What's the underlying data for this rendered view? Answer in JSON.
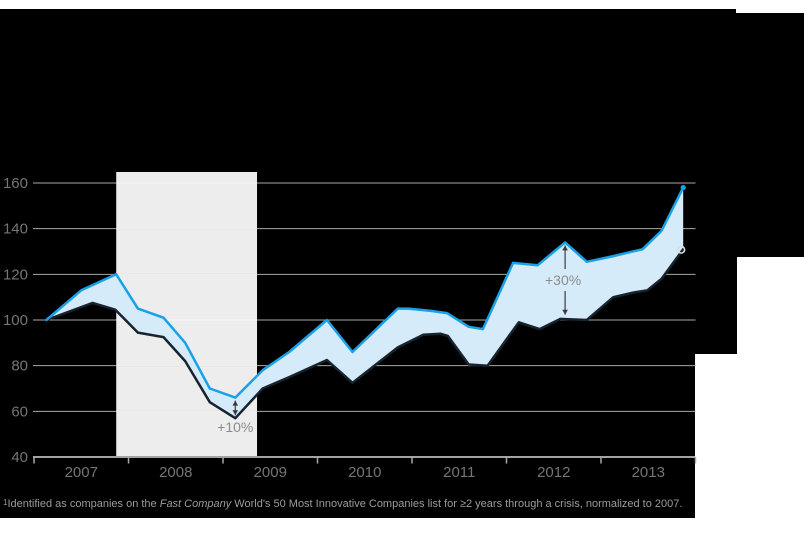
{
  "figure": {
    "background_color": "#000000",
    "page_color": "#ffffff"
  },
  "footnote": {
    "superscript": "1",
    "text_pre": "Identified as companies on the ",
    "italic_part": "Fast Company",
    "text_post": " World's 50 Most Innovative Companies list for ≥2 years through a crisis, normalized to 2007."
  },
  "chart_data": {
    "type": "line",
    "title": "",
    "xlabel": "",
    "ylabel": "",
    "ylim": [
      40,
      160
    ],
    "xlim_years": [
      2007,
      2014
    ],
    "grid": true,
    "yticks": [
      {
        "value": 160,
        "label": "160"
      },
      {
        "value": 140,
        "label": "140"
      },
      {
        "value": 120,
        "label": "120"
      },
      {
        "value": 100,
        "label": "100"
      },
      {
        "value": 80,
        "label": "80"
      },
      {
        "value": 60,
        "label": "60"
      },
      {
        "value": 40,
        "label": "40"
      }
    ],
    "xticks": [
      {
        "year": 2007,
        "label": "2007"
      },
      {
        "year": 2008,
        "label": "2008"
      },
      {
        "year": 2009,
        "label": "2009"
      },
      {
        "year": 2010,
        "label": "2010"
      },
      {
        "year": 2011,
        "label": "2011"
      },
      {
        "year": 2012,
        "label": "2012"
      },
      {
        "year": 2013,
        "label": "2013"
      }
    ],
    "recession_band": {
      "from_year": 2007.87,
      "to_year": 2009.36,
      "color": "#ededed"
    },
    "area_fill_color": "#d6ebf9",
    "series": [
      {
        "name": "innovative-companies",
        "color": "#18a1e7",
        "end_marker": "dot",
        "points": [
          [
            2007.13,
            100
          ],
          [
            2007.5,
            113
          ],
          [
            2007.87,
            120
          ],
          [
            2008.1,
            105
          ],
          [
            2008.37,
            101
          ],
          [
            2008.6,
            90
          ],
          [
            2008.86,
            70
          ],
          [
            2009.13,
            66
          ],
          [
            2009.42,
            78
          ],
          [
            2009.7,
            86
          ],
          [
            2010.1,
            100
          ],
          [
            2010.37,
            86
          ],
          [
            2010.85,
            105
          ],
          [
            2010.96,
            105
          ],
          [
            2011.2,
            104
          ],
          [
            2011.37,
            103
          ],
          [
            2011.6,
            97
          ],
          [
            2011.75,
            96
          ],
          [
            2012.07,
            125
          ],
          [
            2012.33,
            124
          ],
          [
            2012.62,
            134
          ],
          [
            2012.85,
            125.5
          ],
          [
            2013.13,
            128
          ],
          [
            2013.44,
            131
          ],
          [
            2013.64,
            139
          ],
          [
            2013.87,
            158
          ]
        ]
      },
      {
        "name": "sp-500",
        "color": "#17232e",
        "end_marker": "open-circle",
        "points": [
          [
            2007.13,
            100
          ],
          [
            2007.62,
            107.5
          ],
          [
            2007.86,
            104.5
          ],
          [
            2008.1,
            94.5
          ],
          [
            2008.37,
            92.5
          ],
          [
            2008.6,
            82
          ],
          [
            2008.86,
            64
          ],
          [
            2009.13,
            57
          ],
          [
            2009.42,
            70
          ],
          [
            2009.7,
            75
          ],
          [
            2010.1,
            82.5
          ],
          [
            2010.37,
            72.5
          ],
          [
            2010.85,
            88
          ],
          [
            2011.12,
            93.5
          ],
          [
            2011.3,
            94
          ],
          [
            2011.38,
            93
          ],
          [
            2011.6,
            80.5
          ],
          [
            2011.8,
            80
          ],
          [
            2012.13,
            99
          ],
          [
            2012.35,
            96
          ],
          [
            2012.57,
            100.5
          ],
          [
            2012.85,
            100
          ],
          [
            2013.13,
            110
          ],
          [
            2013.34,
            112
          ],
          [
            2013.49,
            113
          ],
          [
            2013.64,
            118
          ],
          [
            2013.87,
            131
          ]
        ]
      }
    ],
    "annotations": [
      {
        "label": "+10%",
        "x_year": 2009.13,
        "from_value": 66,
        "to_value": 57,
        "style": "solid",
        "label_position": "below"
      },
      {
        "label": "+30%",
        "x_year": 2012.62,
        "from_value": 134,
        "to_value": 101,
        "style": "split",
        "label_position": "middle"
      }
    ],
    "colors": {
      "gridline_on_black": "#a8a8a8",
      "gridline_on_band": "#f6f6f6",
      "axis_baseline": "#d9d9d9",
      "tick_label": "#757575",
      "annotation_text": "#8c8c8c",
      "annotation_arrow": "#3a3a3a",
      "end_circle_stroke": "#dcdcdc"
    }
  }
}
